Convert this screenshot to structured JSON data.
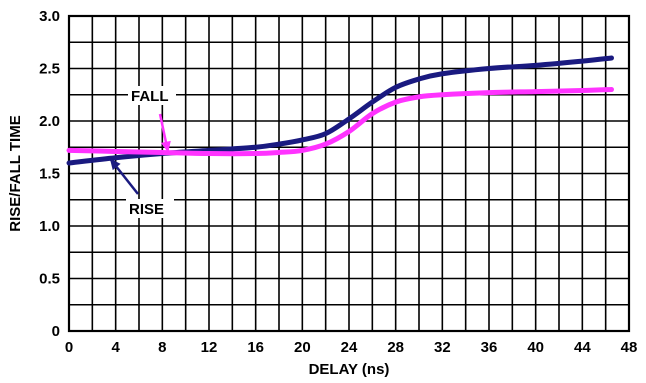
{
  "chart_data": {
    "type": "line",
    "xlabel": "DELAY (ns)",
    "ylabel": "RISE/FALL TIME",
    "xlim": [
      0,
      48
    ],
    "ylim": [
      0,
      3.0
    ],
    "x_ticks": [
      0,
      4,
      8,
      12,
      16,
      20,
      24,
      28,
      32,
      36,
      40,
      44,
      48
    ],
    "y_ticks": [
      0,
      0.5,
      1.0,
      1.5,
      2.0,
      2.5,
      3.0
    ],
    "x_tick_labels": [
      "0",
      "4",
      "8",
      "12",
      "16",
      "20",
      "24",
      "28",
      "32",
      "36",
      "40",
      "44",
      "48"
    ],
    "y_tick_labels": [
      "0",
      "0.5",
      "1.0",
      "1.5",
      "2.0",
      "2.5",
      "3.0"
    ],
    "grid": {
      "x_step": 2,
      "y_step": 0.25
    },
    "series": [
      {
        "name": "RISE",
        "color": "#1a1a80",
        "x": [
          0,
          4,
          8,
          12,
          16,
          18,
          20,
          22,
          24,
          26,
          28,
          30,
          32,
          36,
          40,
          44,
          46.5
        ],
        "y": [
          1.6,
          1.65,
          1.69,
          1.72,
          1.75,
          1.78,
          1.82,
          1.88,
          2.02,
          2.18,
          2.32,
          2.4,
          2.45,
          2.5,
          2.53,
          2.57,
          2.6
        ]
      },
      {
        "name": "FALL",
        "color": "#ff33ff",
        "x": [
          0,
          4,
          8,
          12,
          16,
          18,
          20,
          22,
          24,
          26,
          28,
          30,
          32,
          36,
          40,
          44,
          46.5
        ],
        "y": [
          1.72,
          1.71,
          1.7,
          1.69,
          1.69,
          1.7,
          1.72,
          1.78,
          1.9,
          2.07,
          2.18,
          2.23,
          2.25,
          2.27,
          2.28,
          2.29,
          2.3
        ]
      }
    ],
    "annotations": [
      {
        "text": "FALL",
        "series": "FALL",
        "points_to_x": 8.5,
        "color": "#ff33ff"
      },
      {
        "text": "RISE",
        "series": "RISE",
        "points_to_x": 3.5,
        "color": "#1a1a80"
      }
    ]
  }
}
